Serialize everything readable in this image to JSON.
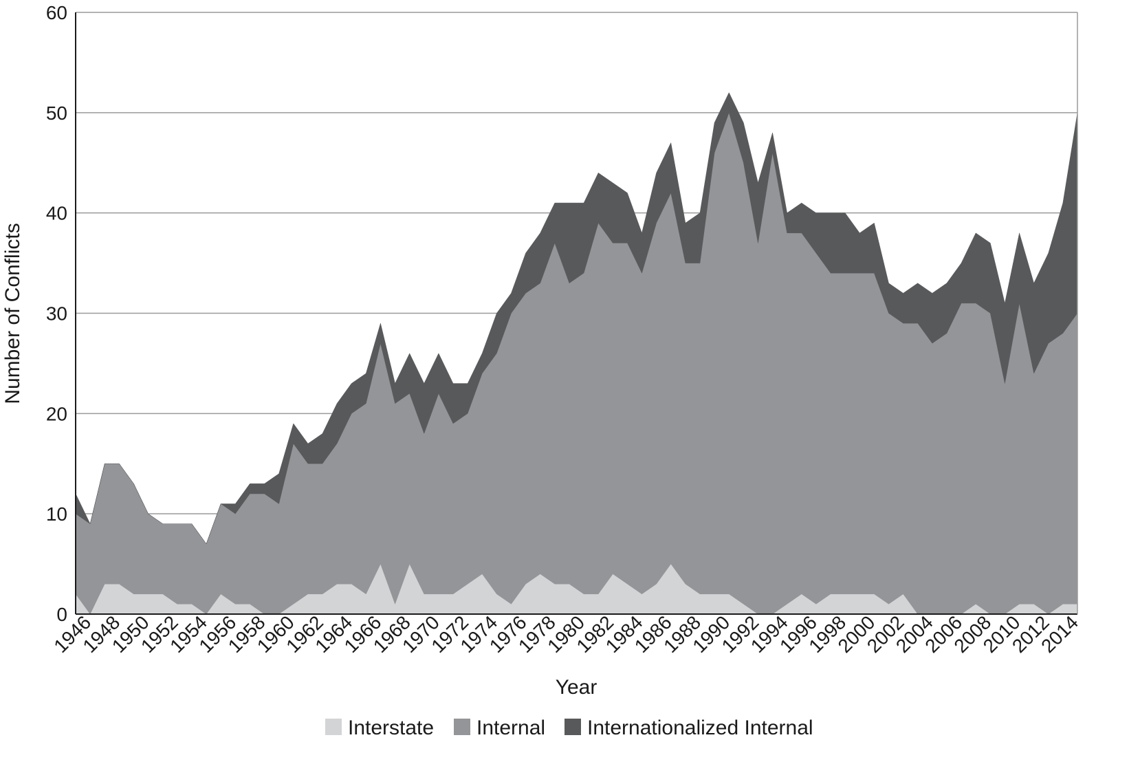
{
  "chart_data": {
    "type": "area",
    "stacked": true,
    "xlabel": "Year",
    "ylabel": "Number of Conflicts",
    "ylim": [
      0,
      60
    ],
    "yticks": [
      0,
      10,
      20,
      30,
      40,
      50,
      60
    ],
    "xlim": [
      1946,
      2015
    ],
    "xticks": [
      "1946",
      "1948",
      "1950",
      "1952",
      "1954",
      "1956",
      "1958",
      "1960",
      "1962",
      "1964",
      "1966",
      "1968",
      "1970",
      "1972",
      "1974",
      "1976",
      "1978",
      "1980",
      "1982",
      "1984",
      "1986",
      "1988",
      "1990",
      "1992",
      "1994",
      "1996",
      "1998",
      "2000",
      "2002",
      "2004",
      "2006",
      "2008",
      "2010",
      "2012",
      "2014"
    ],
    "grid": true,
    "legend_position": "bottom",
    "x": [
      1946,
      1947,
      1948,
      1949,
      1950,
      1951,
      1952,
      1953,
      1954,
      1955,
      1956,
      1957,
      1958,
      1959,
      1960,
      1961,
      1962,
      1963,
      1964,
      1965,
      1966,
      1967,
      1968,
      1969,
      1970,
      1971,
      1972,
      1973,
      1974,
      1975,
      1976,
      1977,
      1978,
      1979,
      1980,
      1981,
      1982,
      1983,
      1984,
      1985,
      1986,
      1987,
      1988,
      1989,
      1990,
      1991,
      1992,
      1993,
      1994,
      1995,
      1996,
      1997,
      1998,
      1999,
      2000,
      2001,
      2002,
      2003,
      2004,
      2005,
      2006,
      2007,
      2008,
      2009,
      2010,
      2011,
      2012,
      2013,
      2014,
      2015
    ],
    "series": [
      {
        "name": "Interstate",
        "color": "#d3d4d6",
        "values": [
          2,
          0,
          3,
          3,
          2,
          2,
          2,
          1,
          1,
          0,
          2,
          1,
          1,
          0,
          0,
          1,
          2,
          2,
          3,
          3,
          2,
          5,
          1,
          5,
          2,
          2,
          2,
          3,
          4,
          2,
          1,
          3,
          4,
          3,
          3,
          2,
          2,
          4,
          3,
          2,
          3,
          5,
          3,
          2,
          2,
          2,
          1,
          0,
          0,
          1,
          2,
          1,
          2,
          2,
          2,
          2,
          1,
          2,
          0,
          0,
          0,
          0,
          1,
          0,
          0,
          1,
          1,
          0,
          1,
          1
        ]
      },
      {
        "name": "Internal",
        "color": "#949598",
        "values": [
          8,
          9,
          12,
          12,
          11,
          8,
          7,
          8,
          8,
          7,
          9,
          9,
          11,
          12,
          11,
          16,
          13,
          13,
          14,
          17,
          19,
          22,
          20,
          17,
          16,
          20,
          17,
          17,
          20,
          24,
          29,
          29,
          29,
          34,
          30,
          32,
          37,
          33,
          34,
          32,
          36,
          37,
          32,
          33,
          44,
          48,
          44,
          37,
          46,
          37,
          36,
          35,
          32,
          32,
          32,
          32,
          29,
          27,
          29,
          27,
          28,
          31,
          30,
          30,
          23,
          30,
          23,
          27,
          27,
          29
        ]
      },
      {
        "name": "Internationalized Internal",
        "color": "#58595b",
        "values": [
          2,
          0,
          0,
          0,
          0,
          0,
          0,
          0,
          0,
          0,
          0,
          1,
          1,
          1,
          3,
          2,
          2,
          3,
          4,
          3,
          3,
          2,
          2,
          4,
          5,
          4,
          4,
          3,
          2,
          4,
          2,
          4,
          5,
          4,
          8,
          7,
          5,
          6,
          5,
          4,
          5,
          5,
          4,
          5,
          3,
          2,
          4,
          6,
          2,
          2,
          3,
          4,
          6,
          6,
          4,
          5,
          3,
          3,
          4,
          5,
          5,
          4,
          7,
          7,
          8,
          7,
          9,
          9,
          13,
          20
        ]
      }
    ]
  }
}
